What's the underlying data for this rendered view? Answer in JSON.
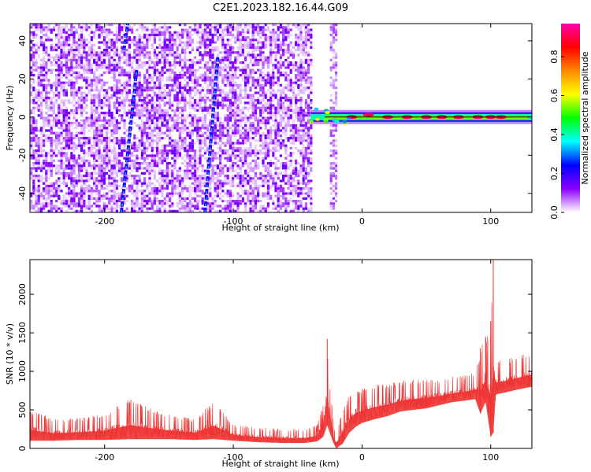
{
  "title": "C2E1.2023.182.16.44.G09",
  "chart_data": [
    {
      "type": "heatmap",
      "xlabel": "Height of straight line (km)",
      "ylabel": "Frequency (Hz)",
      "xlim": [
        -258,
        132
      ],
      "ylim": [
        -50,
        49
      ],
      "x_ticks": [
        -200,
        -100,
        0,
        100
      ],
      "x_tick_labels": [
        "-200",
        "-100",
        "0",
        "100"
      ],
      "y_ticks": [
        -40,
        -20,
        0,
        20,
        40
      ],
      "y_tick_labels": [
        "-40",
        "-20",
        "0",
        "20",
        "40"
      ],
      "colorbar": {
        "label": "Normalized spectral amplitude",
        "range": [
          0,
          0.97
        ],
        "ticks": [
          0.0,
          0.2,
          0.4,
          0.6,
          0.8
        ],
        "tick_labels": [
          "0.0",
          "0.2",
          "0.4",
          "0.6",
          "0.8"
        ],
        "colormap": [
          "#ffffff",
          "#8b00ff",
          "#0000ff",
          "#00ffff",
          "#00ff00",
          "#ffff00",
          "#ff8800",
          "#ff0000",
          "#ff00aa"
        ]
      },
      "features": {
        "noise_region_x": [
          -258,
          -40
        ],
        "noise_strip_x": [
          -25,
          -20
        ],
        "carrier_line": {
          "x": [
            -40,
            132
          ],
          "frequency": 0
        },
        "diagonal_streaks": [
          {
            "x": [
              -187,
              -175
            ],
            "frequency": [
              -50,
              25
            ]
          },
          {
            "x": [
              -122,
              -112
            ],
            "frequency": [
              -50,
              32
            ]
          },
          {
            "x": [
              -185,
              -182
            ],
            "frequency": [
              35,
              49
            ]
          }
        ]
      }
    },
    {
      "type": "line",
      "xlabel": "Height of straight line (km)",
      "ylabel": "SNR (10 * v/v)",
      "xlim": [
        -258,
        132
      ],
      "ylim": [
        0,
        2450
      ],
      "x_ticks": [
        -200,
        -100,
        0,
        100
      ],
      "x_tick_labels": [
        "-200",
        "-100",
        "0",
        "100"
      ],
      "y_ticks": [
        0,
        500,
        1000,
        1500,
        2000
      ],
      "y_tick_labels": [
        "0",
        "500",
        "1000",
        "1500",
        "2000"
      ],
      "color": "#ee3333",
      "series": [
        {
          "x": [
            -258,
            -240,
            -220,
            -200,
            -180,
            -170,
            -150,
            -130,
            -115,
            -100,
            -80,
            -60,
            -45,
            -35,
            -30,
            -27,
            -25,
            -22,
            -20,
            -15,
            -10,
            -5,
            0,
            10,
            20,
            30,
            40,
            50,
            60,
            70,
            80,
            88,
            92,
            96,
            100,
            102,
            104,
            110,
            120,
            132
          ],
          "y_lo": [
            100,
            100,
            110,
            110,
            120,
            120,
            120,
            110,
            120,
            100,
            80,
            70,
            70,
            90,
            150,
            300,
            200,
            60,
            0,
            60,
            200,
            280,
            330,
            380,
            420,
            480,
            500,
            520,
            560,
            600,
            620,
            640,
            450,
            600,
            150,
            200,
            700,
            720,
            760,
            800
          ],
          "y_hi": [
            500,
            380,
            400,
            450,
            650,
            560,
            450,
            380,
            620,
            310,
            270,
            260,
            250,
            300,
            600,
            1420,
            900,
            300,
            200,
            520,
            700,
            800,
            780,
            830,
            850,
            880,
            900,
            920,
            900,
            930,
            950,
            1000,
            1300,
            1450,
            1650,
            2450,
            1150,
            1150,
            1200,
            1250
          ]
        }
      ]
    }
  ]
}
